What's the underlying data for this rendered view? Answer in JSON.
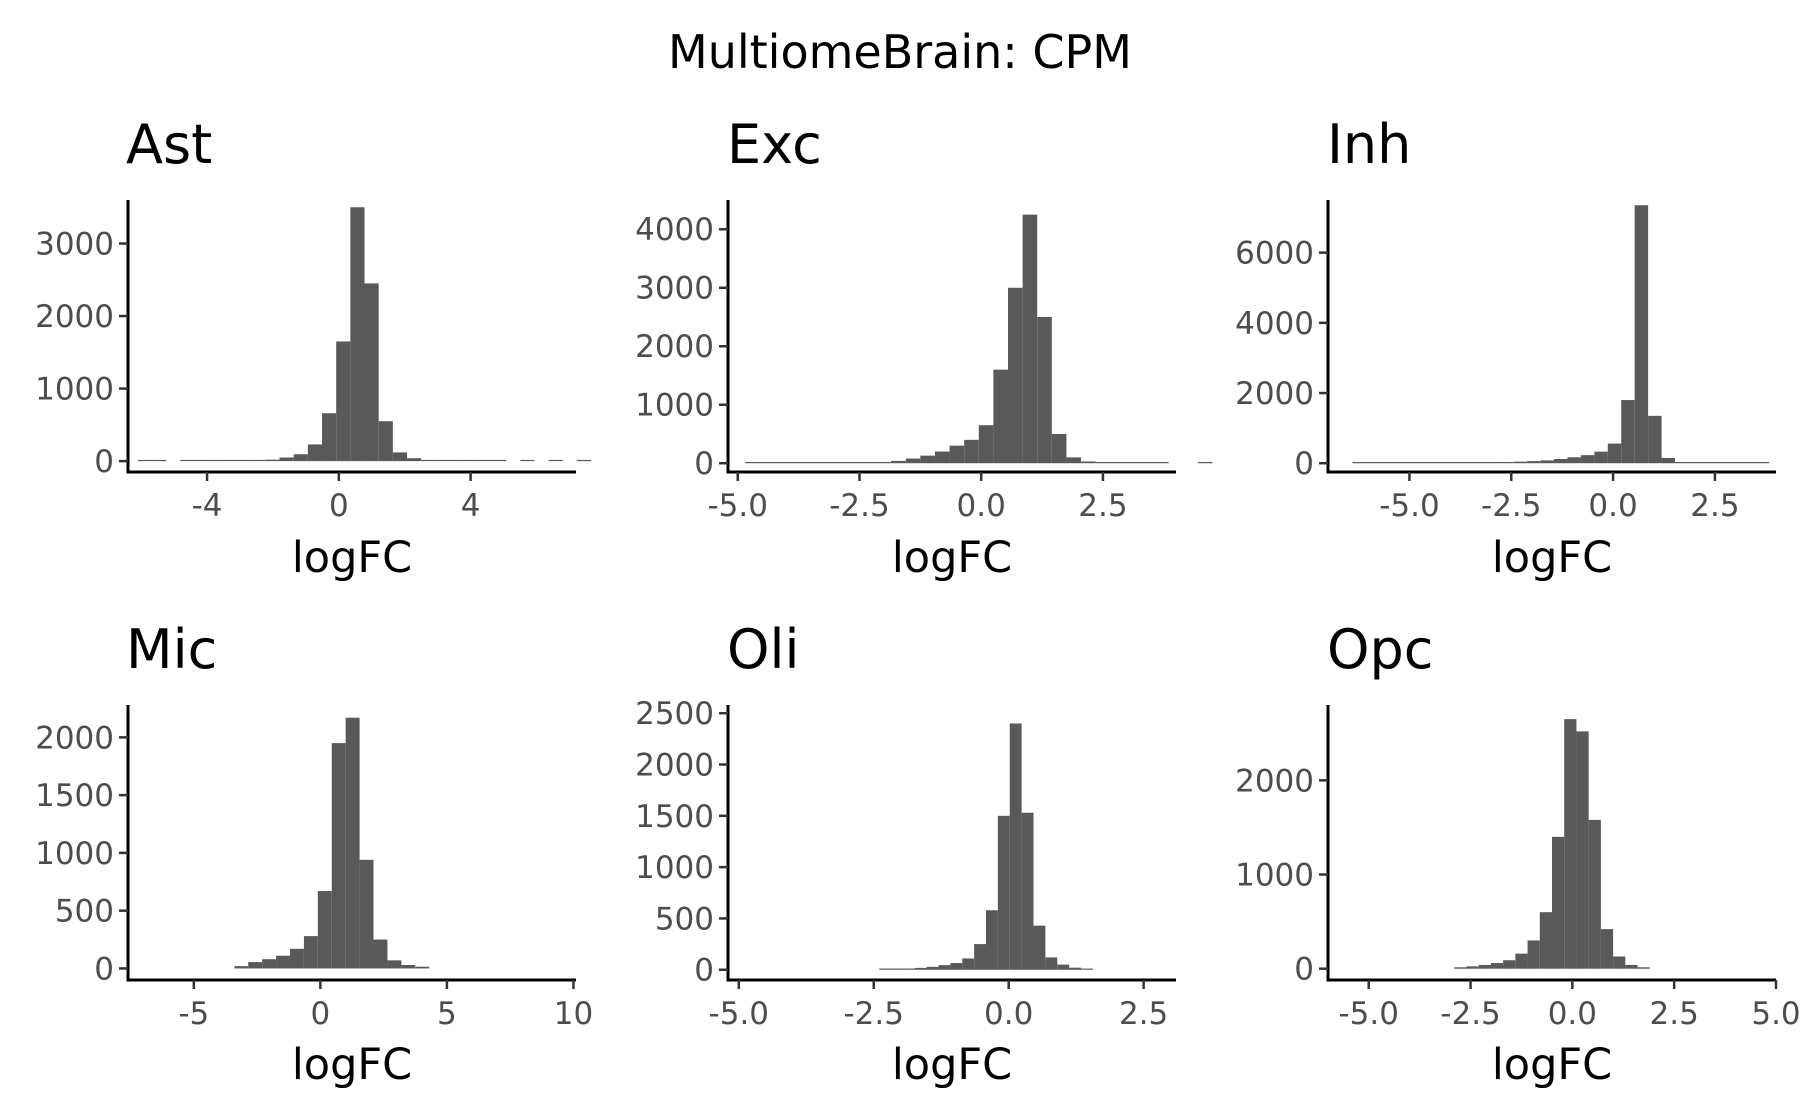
{
  "figure": {
    "title": "MultiomeBrain: CPM",
    "bar_color": "#595959"
  },
  "chart_data": [
    {
      "type": "bar",
      "title": "Ast",
      "xlabel": "logFC",
      "ylabel": "",
      "xlim": [
        -6.4,
        7.2
      ],
      "ylim": [
        -150,
        3600
      ],
      "xticks": [
        -4,
        0,
        4
      ],
      "xtick_labels": [
        "-4",
        "0",
        "4"
      ],
      "yticks": [
        0,
        1000,
        2000,
        3000
      ],
      "ytick_labels": [
        "0",
        "1000",
        "2000",
        "3000"
      ],
      "bin_width": 0.43,
      "bin_start": -6.1,
      "counts": [
        4,
        4,
        0,
        2,
        3,
        4,
        5,
        8,
        12,
        20,
        50,
        95,
        230,
        660,
        1650,
        3500,
        2450,
        550,
        120,
        40,
        15,
        8,
        5,
        3,
        2,
        2,
        0,
        2,
        0,
        2,
        0,
        2
      ]
    },
    {
      "type": "bar",
      "title": "Exc",
      "xlabel": "logFC",
      "ylabel": "",
      "xlim": [
        -5.2,
        4.0
      ],
      "ylim": [
        -150,
        4500
      ],
      "xticks": [
        -5.0,
        -2.5,
        0.0,
        2.5
      ],
      "xtick_labels": [
        "-5.0",
        "-2.5",
        "0.0",
        "2.5"
      ],
      "yticks": [
        0,
        1000,
        2000,
        3000,
        4000
      ],
      "ytick_labels": [
        "0",
        "1000",
        "2000",
        "3000",
        "4000"
      ],
      "bin_width": 0.3,
      "bin_start": -4.85,
      "counts": [
        3,
        3,
        4,
        4,
        5,
        6,
        6,
        8,
        10,
        15,
        40,
        80,
        130,
        200,
        300,
        400,
        650,
        1600,
        3000,
        4250,
        2500,
        500,
        100,
        30,
        12,
        6,
        4,
        3,
        3,
        0,
        0,
        3
      ]
    },
    {
      "type": "bar",
      "title": "Inh",
      "xlabel": "logFC",
      "ylabel": "",
      "xlim": [
        -7.0,
        4.0
      ],
      "ylim": [
        -250,
        7500
      ],
      "xticks": [
        -5.0,
        -2.5,
        0.0,
        2.5
      ],
      "xtick_labels": [
        "-5.0",
        "-2.5",
        "0.0",
        "2.5"
      ],
      "yticks": [
        0,
        2000,
        4000,
        6000
      ],
      "ytick_labels": [
        "0",
        "2000",
        "4000",
        "6000"
      ],
      "bin_width": 0.33,
      "bin_start": -6.4,
      "counts": [
        5,
        5,
        5,
        6,
        6,
        6,
        7,
        8,
        10,
        12,
        15,
        30,
        45,
        60,
        80,
        120,
        170,
        230,
        330,
        560,
        1800,
        7350,
        1350,
        150,
        30,
        15,
        8,
        5,
        5,
        5,
        5
      ]
    },
    {
      "type": "bar",
      "title": "Mic",
      "xlabel": "logFC",
      "ylabel": "",
      "xlim": [
        -7.6,
        10.1
      ],
      "ylim": [
        -100,
        2280
      ],
      "xticks": [
        -5,
        0,
        5,
        10
      ],
      "xtick_labels": [
        "-5",
        "0",
        "5",
        "10"
      ],
      "yticks": [
        0,
        500,
        1000,
        1500,
        2000
      ],
      "ytick_labels": [
        "0",
        "500",
        "1000",
        "1500",
        "2000"
      ],
      "bin_width": 0.55,
      "bin_start": -3.4,
      "counts": [
        20,
        55,
        80,
        110,
        170,
        280,
        670,
        1950,
        2170,
        940,
        250,
        70,
        30,
        15
      ]
    },
    {
      "type": "bar",
      "title": "Oli",
      "xlabel": "logFC",
      "ylabel": "",
      "xlim": [
        -5.2,
        3.1
      ],
      "ylim": [
        -100,
        2580
      ],
      "xticks": [
        -5.0,
        -2.5,
        0.0,
        2.5
      ],
      "xtick_labels": [
        "-5.0",
        "-2.5",
        "0.0",
        "2.5"
      ],
      "yticks": [
        0,
        500,
        1000,
        1500,
        2000,
        2500
      ],
      "ytick_labels": [
        "0",
        "500",
        "1000",
        "1500",
        "2000",
        "2500"
      ],
      "bin_width": 0.22,
      "bin_start": -2.4,
      "counts": [
        8,
        10,
        12,
        18,
        28,
        45,
        65,
        110,
        250,
        580,
        1500,
        2400,
        1530,
        430,
        120,
        50,
        20,
        8
      ]
    },
    {
      "type": "bar",
      "title": "Opc",
      "xlabel": "logFC",
      "ylabel": "",
      "xlim": [
        -6.0,
        5.0
      ],
      "ylim": [
        -120,
        2800
      ],
      "xticks": [
        -5.0,
        -2.5,
        0.0,
        2.5,
        5.0
      ],
      "xtick_labels": [
        "-5.0",
        "-2.5",
        "0.0",
        "2.5",
        "5.0"
      ],
      "yticks": [
        0,
        1000,
        2000
      ],
      "ytick_labels": [
        "0",
        "1000",
        "2000"
      ],
      "bin_width": 0.3,
      "bin_start": -2.9,
      "counts": [
        15,
        25,
        40,
        60,
        90,
        160,
        300,
        600,
        1400,
        2650,
        2520,
        1580,
        420,
        130,
        40,
        15
      ]
    }
  ]
}
